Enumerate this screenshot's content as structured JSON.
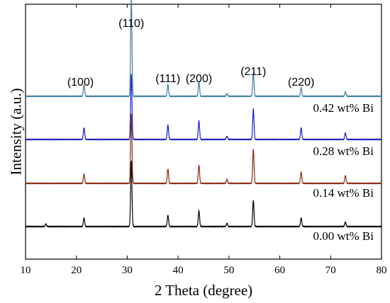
{
  "chart_data": {
    "type": "line",
    "title": "",
    "xlabel": "2 Theta (degree)",
    "ylabel": "Intensity (a.u.)",
    "xlim": [
      10,
      80
    ],
    "xticks": [
      10,
      20,
      30,
      40,
      50,
      60,
      70,
      80
    ],
    "y_ticks_shown": false,
    "legend": "none",
    "grid": false,
    "annotations": [
      {
        "text": "(100)",
        "x": 21.5
      },
      {
        "text": "(110)",
        "x": 30.8
      },
      {
        "text": "(111)",
        "x": 38.0
      },
      {
        "text": "(200)",
        "x": 44.1
      },
      {
        "text": "(211)",
        "x": 54.8
      },
      {
        "text": "(220)",
        "x": 64.2
      }
    ],
    "series": [
      {
        "name": "0.00 wt% Bi",
        "color": "#000000",
        "baseline": 0.0,
        "peaks": [
          {
            "x": 14.0,
            "h": 0.04
          },
          {
            "x": 21.5,
            "h": 0.13
          },
          {
            "x": 30.8,
            "h": 1.0
          },
          {
            "x": 38.0,
            "h": 0.17
          },
          {
            "x": 44.1,
            "h": 0.24
          },
          {
            "x": 49.6,
            "h": 0.05
          },
          {
            "x": 54.8,
            "h": 0.4
          },
          {
            "x": 64.2,
            "h": 0.13
          },
          {
            "x": 72.9,
            "h": 0.07
          }
        ]
      },
      {
        "name": "0.14 wt% Bi",
        "color": "#8b2a12",
        "baseline": 1.0,
        "peaks": [
          {
            "x": 21.5,
            "h": 0.14
          },
          {
            "x": 30.8,
            "h": 1.05
          },
          {
            "x": 38.0,
            "h": 0.22
          },
          {
            "x": 44.1,
            "h": 0.28
          },
          {
            "x": 49.6,
            "h": 0.06
          },
          {
            "x": 54.8,
            "h": 0.52
          },
          {
            "x": 64.2,
            "h": 0.17
          },
          {
            "x": 72.9,
            "h": 0.12
          }
        ]
      },
      {
        "name": "0.28 wt% Bi",
        "color": "#1f1fc8",
        "baseline": 2.0,
        "peaks": [
          {
            "x": 21.5,
            "h": 0.18
          },
          {
            "x": 30.8,
            "h": 1.0
          },
          {
            "x": 38.0,
            "h": 0.22
          },
          {
            "x": 44.1,
            "h": 0.28
          },
          {
            "x": 49.6,
            "h": 0.05
          },
          {
            "x": 54.8,
            "h": 0.46
          },
          {
            "x": 64.2,
            "h": 0.18
          },
          {
            "x": 72.9,
            "h": 0.1
          }
        ]
      },
      {
        "name": "0.42 wt% Bi",
        "color": "#3f7fa3",
        "baseline": 3.0,
        "peaks": [
          {
            "x": 21.5,
            "h": 0.17
          },
          {
            "x": 30.8,
            "h": 1.48
          },
          {
            "x": 38.0,
            "h": 0.18
          },
          {
            "x": 44.1,
            "h": 0.22
          },
          {
            "x": 49.6,
            "h": 0.04
          },
          {
            "x": 54.8,
            "h": 0.35
          },
          {
            "x": 64.2,
            "h": 0.13
          },
          {
            "x": 72.9,
            "h": 0.07
          }
        ]
      }
    ]
  }
}
